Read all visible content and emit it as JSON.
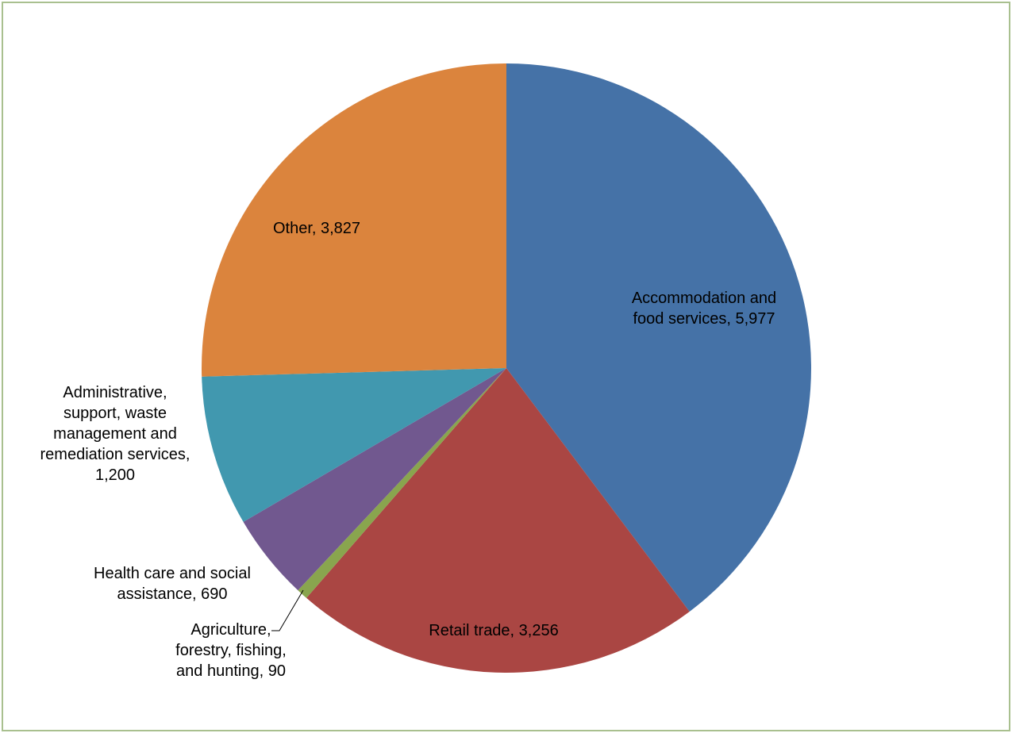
{
  "chart_data": {
    "type": "pie",
    "title": "",
    "legend": "none",
    "start_angle_deg": 0,
    "direction": "clockwise",
    "slices": [
      {
        "label": "Accommodation and food services",
        "value": 5977,
        "color": "#4572a7",
        "label_lines": [
          "Accommodation and",
          "food services,  5,977"
        ]
      },
      {
        "label": "Retail trade",
        "value": 3256,
        "color": "#aa4643",
        "label_lines": [
          "Retail trade,  3,256"
        ]
      },
      {
        "label": "Agriculture, forestry, fishing, and hunting",
        "value": 90,
        "color": "#89a54e",
        "label_lines": [
          "Agriculture,",
          "forestry, fishing,",
          "and hunting,  90"
        ]
      },
      {
        "label": "Health care and social assistance",
        "value": 690,
        "color": "#71588f",
        "label_lines": [
          "Health care and social",
          "assistance,  690"
        ]
      },
      {
        "label": "Administrative, support, waste management and remediation services",
        "value": 1200,
        "color": "#4198af",
        "label_lines": [
          "Administrative,",
          "support, waste",
          "management and",
          "remediation services,",
          "1,200"
        ]
      },
      {
        "label": "Other",
        "value": 3827,
        "color": "#db843d",
        "label_lines": [
          "Other,  3,827"
        ]
      }
    ]
  }
}
